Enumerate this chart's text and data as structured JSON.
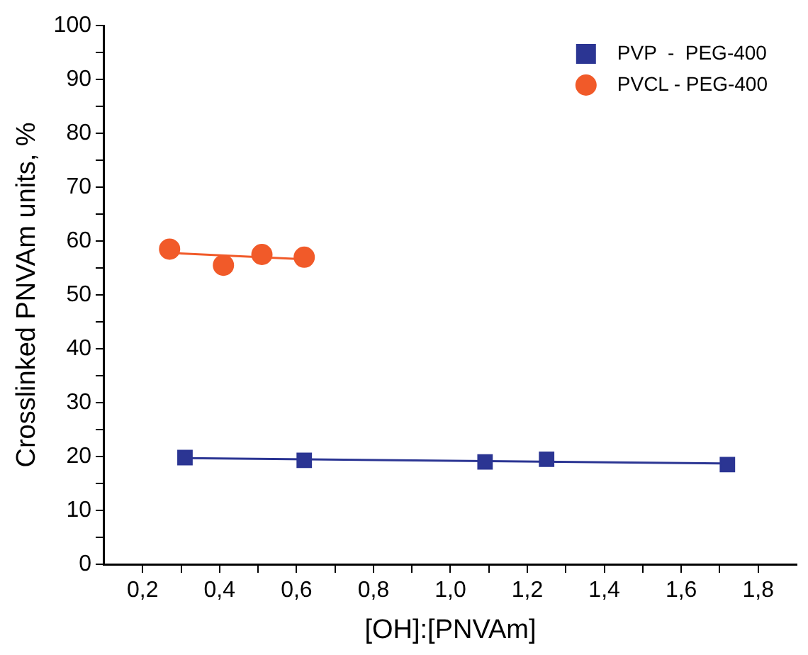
{
  "chart_data": {
    "type": "scatter",
    "xlabel": "[OH]:[PNVAm]",
    "ylabel": "Crosslinked PNVAm units, %",
    "xlim": [
      0.1,
      1.9
    ],
    "ylim": [
      0,
      100
    ],
    "xticks": [
      {
        "value": 0.2,
        "label": "0,2"
      },
      {
        "value": 0.3,
        "label": null
      },
      {
        "value": 0.4,
        "label": "0,4"
      },
      {
        "value": 0.5,
        "label": null
      },
      {
        "value": 0.6,
        "label": "0,6"
      },
      {
        "value": 0.7,
        "label": null
      },
      {
        "value": 0.8,
        "label": "0,8"
      },
      {
        "value": 0.9,
        "label": null
      },
      {
        "value": 1.0,
        "label": "1,0"
      },
      {
        "value": 1.1,
        "label": null
      },
      {
        "value": 1.2,
        "label": "1,2"
      },
      {
        "value": 1.3,
        "label": null
      },
      {
        "value": 1.4,
        "label": "1,4"
      },
      {
        "value": 1.5,
        "label": null
      },
      {
        "value": 1.6,
        "label": "1,6"
      },
      {
        "value": 1.7,
        "label": null
      },
      {
        "value": 1.8,
        "label": "1,8"
      }
    ],
    "yticks": [
      0,
      {
        "value": 5,
        "label": null
      },
      10,
      {
        "value": 15,
        "label": null
      },
      20,
      {
        "value": 25,
        "label": null
      },
      30,
      {
        "value": 35,
        "label": null
      },
      40,
      {
        "value": 45,
        "label": null
      },
      50,
      {
        "value": 55,
        "label": null
      },
      60,
      {
        "value": 65,
        "label": null
      },
      70,
      {
        "value": 75,
        "label": null
      },
      80,
      {
        "value": 85,
        "label": null
      },
      90,
      {
        "value": 95,
        "label": null
      },
      100
    ],
    "grid": false,
    "legend": "top right",
    "series": [
      {
        "name": "PVP  -  PEG-400",
        "color": "#2b3593",
        "marker": "square",
        "x": [
          0.31,
          0.62,
          1.09,
          1.25,
          1.72
        ],
        "values": [
          19.8,
          19.3,
          19.0,
          19.5,
          18.5
        ]
      },
      {
        "name": "PVCL - PEG-400",
        "color": "#f15a29",
        "marker": "circle",
        "x": [
          0.27,
          0.41,
          0.51,
          0.62
        ],
        "values": [
          58.5,
          55.5,
          57.5,
          57.0
        ]
      },
      {
        "type": "line",
        "color": "#2b3593",
        "marker": "none",
        "x": [
          0.31,
          1.72
        ],
        "values": [
          19.7,
          18.7
        ]
      },
      {
        "type": "line",
        "color": "#f15a29",
        "marker": "none",
        "x": [
          0.27,
          0.62
        ],
        "values": [
          57.8,
          56.6
        ]
      }
    ]
  }
}
